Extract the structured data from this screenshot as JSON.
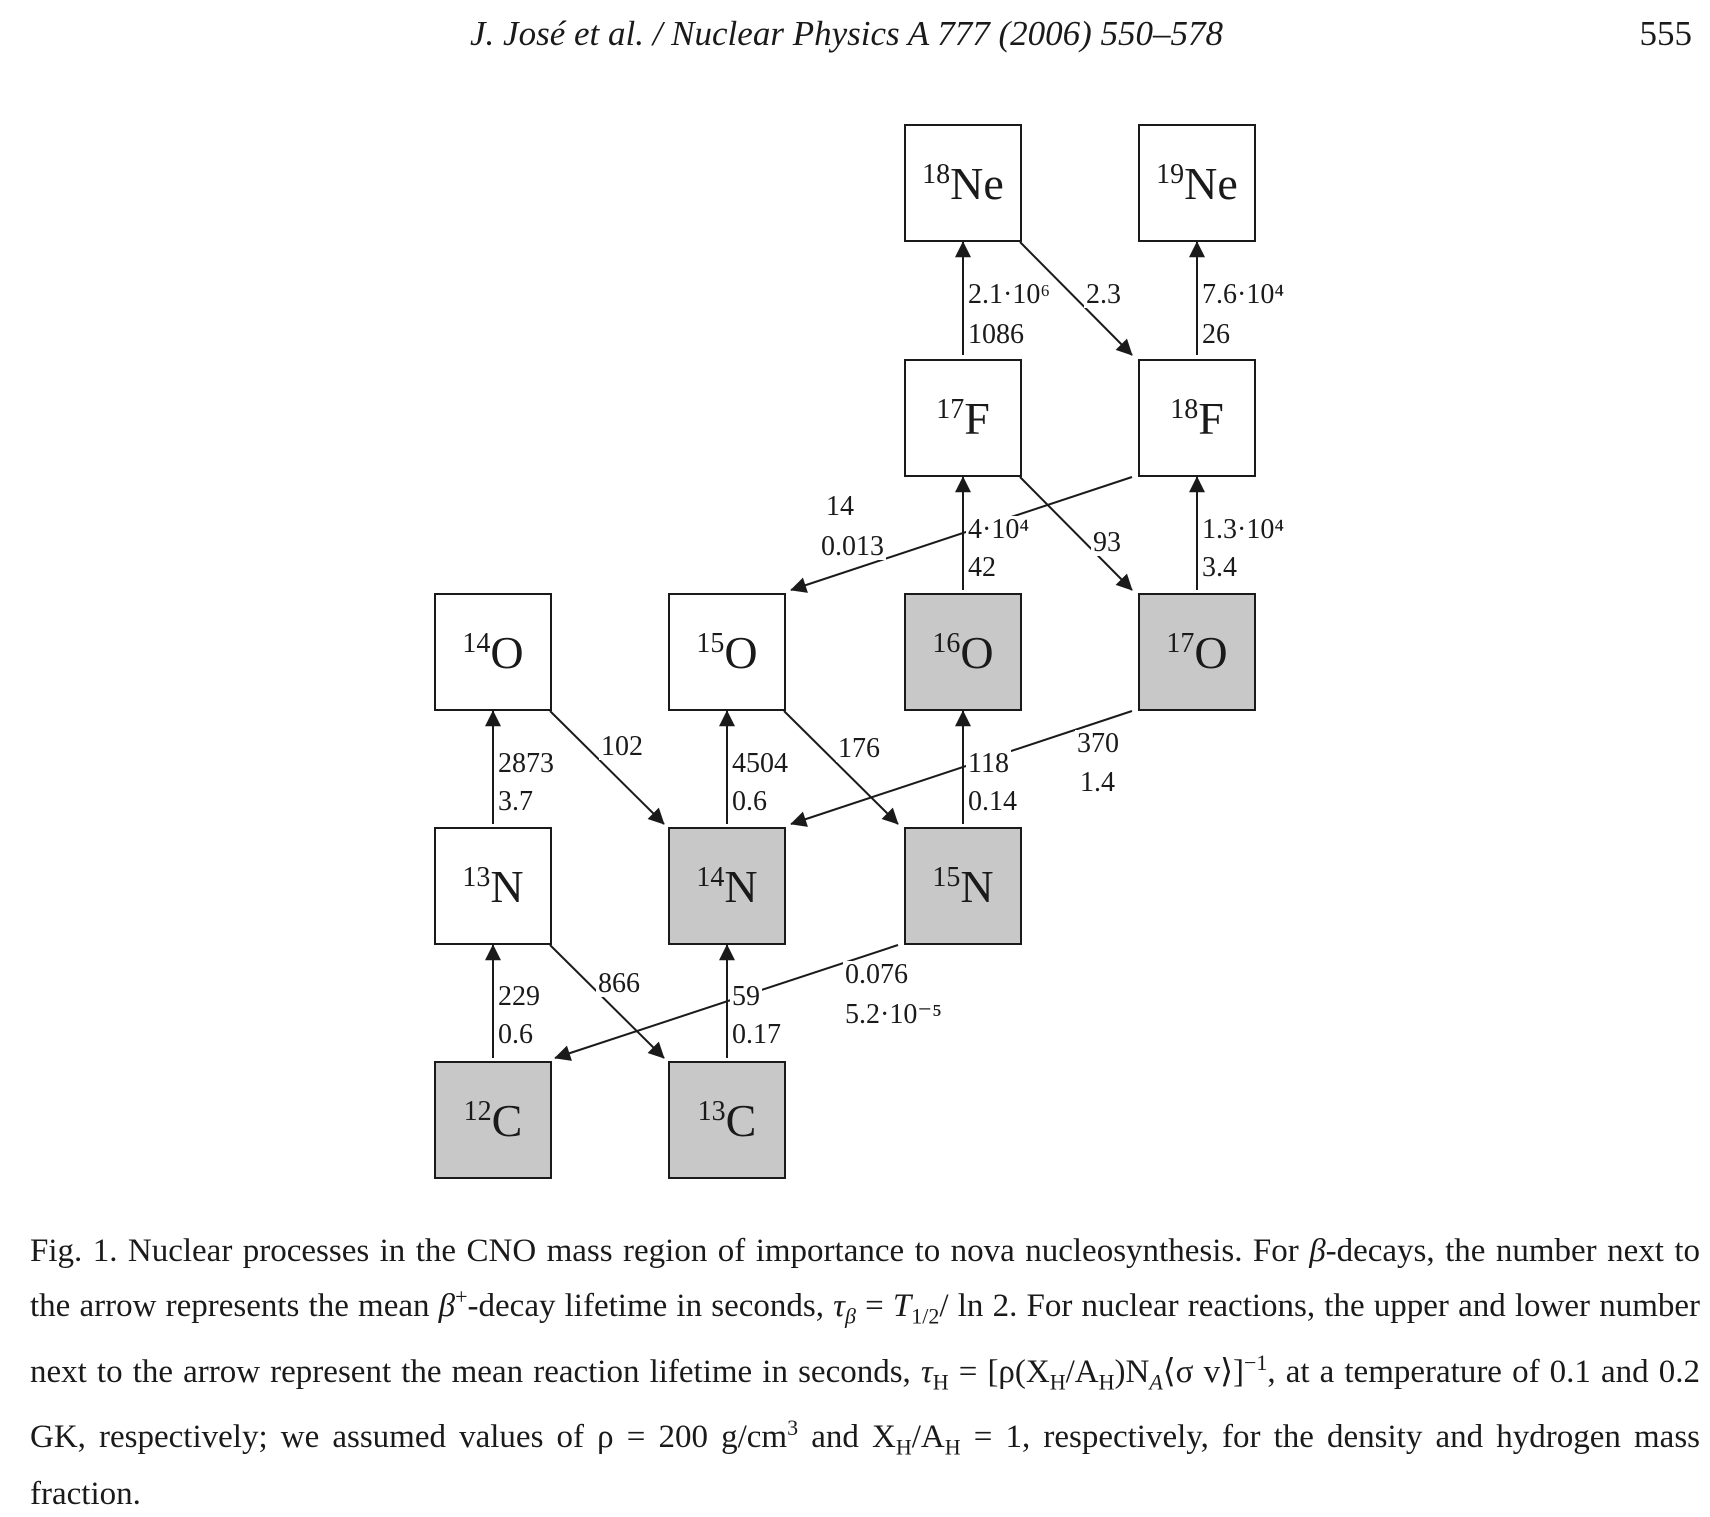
{
  "header": {
    "journal": "J. José et al. / Nuclear Physics A 777 (2006) 550–578",
    "page_number": "555"
  },
  "diagram": {
    "nuclei": {
      "ne18": {
        "mass": "18",
        "element": "Ne",
        "stable": false
      },
      "ne19": {
        "mass": "19",
        "element": "Ne",
        "stable": false
      },
      "f17": {
        "mass": "17",
        "element": "F",
        "stable": false
      },
      "f18": {
        "mass": "18",
        "element": "F",
        "stable": false
      },
      "o14": {
        "mass": "14",
        "element": "O",
        "stable": false
      },
      "o15": {
        "mass": "15",
        "element": "O",
        "stable": false
      },
      "o16": {
        "mass": "16",
        "element": "O",
        "stable": true
      },
      "o17": {
        "mass": "17",
        "element": "O",
        "stable": true
      },
      "n13": {
        "mass": "13",
        "element": "N",
        "stable": false
      },
      "n14": {
        "mass": "14",
        "element": "N",
        "stable": true
      },
      "n15": {
        "mass": "15",
        "element": "N",
        "stable": true
      },
      "c12": {
        "mass": "12",
        "element": "C",
        "stable": true
      },
      "c13": {
        "mass": "13",
        "element": "C",
        "stable": true
      }
    },
    "labels": {
      "f17_ne18_up": "2.1·10⁶",
      "f17_ne18_low": "1086",
      "ne18_f18": "2.3",
      "f18_ne19_up": "7.6·10⁴",
      "f18_ne19_low": "26",
      "f18_o15_up": "14",
      "f18_o15_low": "0.013",
      "o16_f17_up": "4·10⁴",
      "o16_f17_low": "42",
      "f17_o17": "93",
      "o17_f18_up": "1.3·10⁴",
      "o17_f18_low": "3.4",
      "n13_o14_up": "2873",
      "n13_o14_low": "3.7",
      "o14_n14": "102",
      "n14_o15_up": "4504",
      "n14_o15_low": "0.6",
      "o15_n15": "176",
      "n15_o16_up": "118",
      "n15_o16_low": "0.14",
      "o17_n14_up": "370",
      "o17_n14_low": "1.4",
      "c12_n13_up": "229",
      "c12_n13_low": "0.6",
      "n13_c13": "866",
      "c13_n14_up": "59",
      "c13_n14_low": "0.17",
      "n15_c12_up": "0.076",
      "n15_c12_low": "5.2·10⁻⁵"
    },
    "stable_fill": "#c8c8c8"
  },
  "caption": {
    "intro": "Fig. 1. Nuclear processes in the CNO mass region of importance to nova nucleosynthesis. For ",
    "beta": "β",
    "t1": "-decays, the number next to the arrow represents the mean ",
    "t2": "-decay lifetime in seconds, ",
    "tau_beta": "τ",
    "eq1": " = ",
    "T": "T",
    "half": "1/2",
    "ln2": "/ ln 2. For nuclear reactions, the upper and lower number next to the arrow represent the mean reaction lifetime in seconds, ",
    "tau": "τ",
    "H": "H",
    "eq2": " = [ρ(X",
    "over": "/A",
    "mid": ")N",
    "A": "A",
    "sv": "⟨σ v⟩]",
    "minus1": "−1",
    "t3": ", at a temperature of 0.1 and 0.2 GK, respectively; we assumed values of ρ = 200 g/cm",
    "three": "3",
    "t4": " and X",
    "t5": " = 1, respectively, for the density and hydrogen mass fraction."
  }
}
